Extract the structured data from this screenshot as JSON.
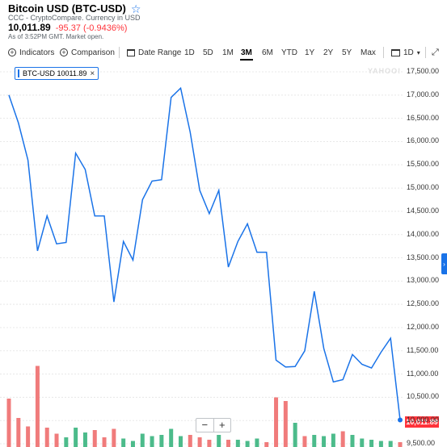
{
  "header": {
    "title": "Bitcoin USD (BTC-USD)",
    "subtitle": "CCC - CryptoCompare. Currency in USD",
    "price": "10,011.89",
    "change": "-95.37 (-0.9436%)",
    "as_of": "As of 3:52PM GMT. Market open."
  },
  "toolbar": {
    "indicators_label": "Indicators",
    "comparison_label": "Comparison",
    "date_range_label": "Date Range",
    "ranges": [
      "1D",
      "5D",
      "1M",
      "3M",
      "6M",
      "YTD",
      "1Y",
      "2Y",
      "5Y",
      "Max"
    ],
    "selected_range": "3M",
    "interval_label": "1D"
  },
  "legend": {
    "label": "BTC-USD 10011.89"
  },
  "watermark": "YAHOO!",
  "last_price_tag": "10,011.89",
  "colors": {
    "line": "#1a73e8",
    "volume_up": "#4cbb8b",
    "volume_down": "#f07b7b",
    "negative": "#ff333a",
    "grid": "#e8e8e8"
  },
  "chart_data": {
    "type": "line",
    "ylim": [
      9500,
      17500
    ],
    "y_ticks": [
      "17,500.00",
      "17,000.00",
      "16,500.00",
      "16,000.00",
      "15,500.00",
      "15,000.00",
      "14,500.00",
      "14,000.00",
      "13,500.00",
      "13,000.00",
      "12,500.00",
      "12,000.00",
      "11,500.00",
      "11,000.00",
      "10,500.00",
      "10,000.00",
      "9,500.00"
    ],
    "series": [
      {
        "values": [
          17000,
          16400,
          15600,
          13650,
          14400,
          13800,
          13830,
          15750,
          15400,
          14400,
          14400,
          12550,
          13850,
          13450,
          14750,
          15150,
          15180,
          16950,
          17150,
          16200,
          14950,
          14450,
          14950,
          13300,
          13850,
          14230,
          13620,
          13620,
          11300,
          11150,
          11160,
          11500,
          12780,
          11550,
          10830,
          10880,
          11420,
          11210,
          11130,
          11470,
          11770,
          10011.89
        ]
      }
    ],
    "volume": [
      {
        "v": 0.4,
        "dir": "down"
      },
      {
        "v": 0.24,
        "dir": "down"
      },
      {
        "v": 0.17,
        "dir": "down"
      },
      {
        "v": 0.67,
        "dir": "down"
      },
      {
        "v": 0.16,
        "dir": "down"
      },
      {
        "v": 0.11,
        "dir": "down"
      },
      {
        "v": 0.08,
        "dir": "up"
      },
      {
        "v": 0.16,
        "dir": "up"
      },
      {
        "v": 0.12,
        "dir": "up"
      },
      {
        "v": 0.14,
        "dir": "down"
      },
      {
        "v": 0.08,
        "dir": "down"
      },
      {
        "v": 0.15,
        "dir": "down"
      },
      {
        "v": 0.07,
        "dir": "up"
      },
      {
        "v": 0.05,
        "dir": "up"
      },
      {
        "v": 0.11,
        "dir": "up"
      },
      {
        "v": 0.09,
        "dir": "up"
      },
      {
        "v": 0.1,
        "dir": "up"
      },
      {
        "v": 0.15,
        "dir": "up"
      },
      {
        "v": 0.09,
        "dir": "up"
      },
      {
        "v": 0.1,
        "dir": "down"
      },
      {
        "v": 0.08,
        "dir": "down"
      },
      {
        "v": 0.06,
        "dir": "down"
      },
      {
        "v": 0.1,
        "dir": "up"
      },
      {
        "v": 0.06,
        "dir": "down"
      },
      {
        "v": 0.06,
        "dir": "up"
      },
      {
        "v": 0.05,
        "dir": "up"
      },
      {
        "v": 0.07,
        "dir": "up"
      },
      {
        "v": 0.04,
        "dir": "down"
      },
      {
        "v": 0.41,
        "dir": "down"
      },
      {
        "v": 0.38,
        "dir": "down"
      },
      {
        "v": 0.2,
        "dir": "up"
      },
      {
        "v": 0.09,
        "dir": "down"
      },
      {
        "v": 0.1,
        "dir": "up"
      },
      {
        "v": 0.09,
        "dir": "up"
      },
      {
        "v": 0.11,
        "dir": "up"
      },
      {
        "v": 0.13,
        "dir": "down"
      },
      {
        "v": 0.1,
        "dir": "up"
      },
      {
        "v": 0.07,
        "dir": "up"
      },
      {
        "v": 0.06,
        "dir": "up"
      },
      {
        "v": 0.05,
        "dir": "up"
      },
      {
        "v": 0.05,
        "dir": "up"
      },
      {
        "v": 0.04,
        "dir": "down"
      }
    ]
  }
}
